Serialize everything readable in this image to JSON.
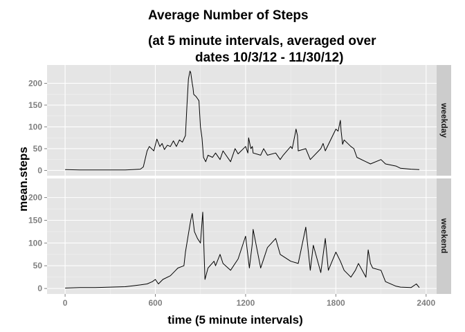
{
  "chart_data": {
    "type": "line",
    "title_lines": [
      "Average Number of Steps",
      "(at 5 minute intervals, averaged over",
      "dates 10/3/12 - 11/30/12)"
    ],
    "xlabel": "time (5 minute intervals)",
    "ylabel": "mean.steps",
    "xlim": [
      -120,
      2470
    ],
    "ylim": [
      -12,
      242
    ],
    "x_ticks": [
      0,
      600,
      1200,
      1800,
      2400
    ],
    "x_tick_labels": [
      "0",
      "600",
      "1200",
      "1800",
      "2400"
    ],
    "y_ticks": [
      0,
      50,
      100,
      150,
      200
    ],
    "y_tick_labels": [
      "0",
      "50",
      "100",
      "150",
      "200"
    ],
    "grid": true,
    "facets": [
      {
        "strip": "weekday",
        "series": {
          "x": [
            0,
            100,
            200,
            300,
            400,
            450,
            500,
            520,
            545,
            560,
            590,
            610,
            630,
            645,
            660,
            680,
            700,
            720,
            740,
            760,
            780,
            800,
            810,
            820,
            830,
            835,
            845,
            850,
            855,
            860,
            870,
            880,
            890,
            900,
            910,
            920,
            935,
            950,
            980,
            1000,
            1030,
            1050,
            1100,
            1130,
            1150,
            1200,
            1215,
            1220,
            1235,
            1245,
            1250,
            1300,
            1320,
            1345,
            1400,
            1430,
            1450,
            1500,
            1510,
            1530,
            1535,
            1545,
            1550,
            1600,
            1630,
            1700,
            1715,
            1730,
            1800,
            1815,
            1830,
            1835,
            1845,
            1855,
            1900,
            1920,
            1940,
            2000,
            2030,
            2100,
            2130,
            2200,
            2230,
            2300,
            2355
          ],
          "y": [
            2,
            1,
            1,
            1,
            1,
            2,
            3,
            8,
            45,
            55,
            45,
            72,
            55,
            62,
            48,
            58,
            55,
            68,
            55,
            70,
            65,
            80,
            150,
            210,
            228,
            225,
            200,
            190,
            175,
            173,
            170,
            165,
            160,
            100,
            75,
            30,
            20,
            35,
            30,
            40,
            25,
            45,
            20,
            50,
            38,
            55,
            40,
            75,
            50,
            55,
            40,
            35,
            50,
            35,
            40,
            25,
            35,
            55,
            50,
            85,
            95,
            80,
            45,
            50,
            25,
            50,
            62,
            45,
            95,
            90,
            115,
            90,
            60,
            70,
            55,
            50,
            30,
            20,
            15,
            25,
            15,
            10,
            5,
            3,
            2
          ]
        }
      },
      {
        "strip": "weekend",
        "series": {
          "x": [
            0,
            100,
            200,
            300,
            400,
            450,
            500,
            545,
            580,
            600,
            620,
            650,
            700,
            750,
            790,
            800,
            820,
            835,
            845,
            860,
            880,
            900,
            915,
            930,
            950,
            990,
            1000,
            1030,
            1050,
            1100,
            1150,
            1200,
            1225,
            1245,
            1250,
            1300,
            1345,
            1400,
            1430,
            1500,
            1550,
            1600,
            1630,
            1650,
            1700,
            1730,
            1750,
            1800,
            1830,
            1855,
            1900,
            1930,
            1950,
            2000,
            2015,
            2030,
            2045,
            2100,
            2130,
            2200,
            2230,
            2300,
            2335,
            2355
          ],
          "y": [
            1,
            2,
            2,
            3,
            4,
            6,
            8,
            10,
            15,
            20,
            10,
            20,
            28,
            45,
            50,
            80,
            120,
            150,
            165,
            125,
            110,
            100,
            168,
            20,
            45,
            60,
            50,
            75,
            55,
            40,
            65,
            115,
            45,
            100,
            130,
            45,
            90,
            110,
            75,
            60,
            55,
            135,
            40,
            95,
            35,
            110,
            40,
            80,
            60,
            40,
            25,
            40,
            55,
            25,
            85,
            55,
            45,
            40,
            15,
            5,
            3,
            2,
            10,
            2
          ]
        }
      }
    ]
  }
}
